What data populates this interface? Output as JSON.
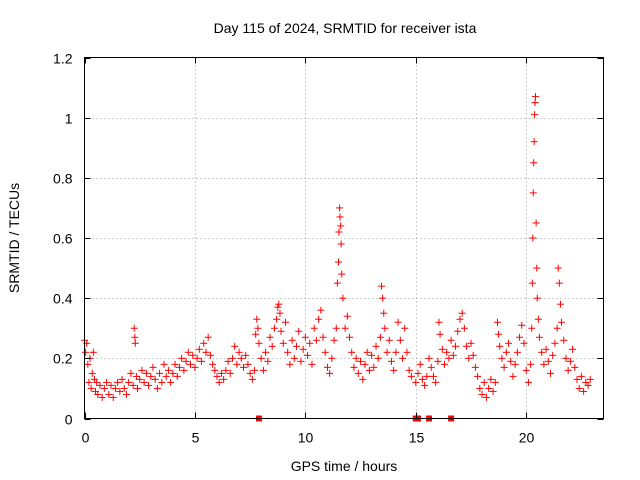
{
  "chart_data": {
    "type": "scatter",
    "title": "Day 115 of 2024, SRMTID for receiver ista",
    "xlabel": "GPS time / hours",
    "ylabel": "SRMTID / TECUs",
    "xlim": [
      0,
      23.5
    ],
    "ylim": [
      0,
      1.2
    ],
    "x_ticks": [
      0,
      5,
      10,
      15,
      20
    ],
    "y_ticks": [
      0,
      0.2,
      0.4,
      0.6,
      0.8,
      1,
      1.2
    ],
    "x_tick_labels": [
      "0",
      "5",
      "10",
      "15",
      "20"
    ],
    "y_tick_labels": [
      "0",
      "0.2",
      "0.4",
      "0.6",
      "0.8",
      "1",
      "1.2"
    ],
    "grid": true,
    "marker": "plus",
    "color": "#ff0000",
    "series": [
      {
        "name": "SRMTID",
        "points": [
          [
            0.0,
            0.26
          ],
          [
            0.05,
            0.22
          ],
          [
            0.1,
            0.25
          ],
          [
            0.15,
            0.18
          ],
          [
            0.2,
            0.12
          ],
          [
            0.25,
            0.2
          ],
          [
            0.3,
            0.1
          ],
          [
            0.35,
            0.15
          ],
          [
            0.4,
            0.22
          ],
          [
            0.45,
            0.13
          ],
          [
            0.5,
            0.09
          ],
          [
            0.55,
            0.12
          ],
          [
            0.6,
            0.08
          ],
          [
            0.7,
            0.11
          ],
          [
            0.8,
            0.07
          ],
          [
            0.9,
            0.1
          ],
          [
            1.0,
            0.12
          ],
          [
            1.1,
            0.08
          ],
          [
            1.2,
            0.11
          ],
          [
            1.3,
            0.07
          ],
          [
            1.4,
            0.1
          ],
          [
            1.5,
            0.12
          ],
          [
            1.6,
            0.09
          ],
          [
            1.7,
            0.13
          ],
          [
            1.8,
            0.1
          ],
          [
            1.9,
            0.08
          ],
          [
            2.0,
            0.12
          ],
          [
            2.1,
            0.15
          ],
          [
            2.2,
            0.11
          ],
          [
            2.25,
            0.3
          ],
          [
            2.28,
            0.27
          ],
          [
            2.3,
            0.25
          ],
          [
            2.35,
            0.14
          ],
          [
            2.4,
            0.1
          ],
          [
            2.5,
            0.13
          ],
          [
            2.6,
            0.16
          ],
          [
            2.7,
            0.12
          ],
          [
            2.8,
            0.15
          ],
          [
            2.9,
            0.11
          ],
          [
            3.0,
            0.14
          ],
          [
            3.1,
            0.17
          ],
          [
            3.2,
            0.13
          ],
          [
            3.3,
            0.1
          ],
          [
            3.4,
            0.15
          ],
          [
            3.5,
            0.12
          ],
          [
            3.6,
            0.18
          ],
          [
            3.7,
            0.14
          ],
          [
            3.8,
            0.16
          ],
          [
            3.9,
            0.12
          ],
          [
            4.0,
            0.15
          ],
          [
            4.1,
            0.18
          ],
          [
            4.2,
            0.14
          ],
          [
            4.3,
            0.17
          ],
          [
            4.4,
            0.2
          ],
          [
            4.5,
            0.16
          ],
          [
            4.6,
            0.19
          ],
          [
            4.7,
            0.22
          ],
          [
            4.8,
            0.18
          ],
          [
            4.9,
            0.21
          ],
          [
            5.0,
            0.17
          ],
          [
            5.1,
            0.2
          ],
          [
            5.2,
            0.23
          ],
          [
            5.3,
            0.19
          ],
          [
            5.4,
            0.25
          ],
          [
            5.5,
            0.22
          ],
          [
            5.6,
            0.27
          ],
          [
            5.7,
            0.21
          ],
          [
            5.8,
            0.18
          ],
          [
            5.9,
            0.16
          ],
          [
            6.0,
            0.14
          ],
          [
            6.1,
            0.12
          ],
          [
            6.2,
            0.15
          ],
          [
            6.3,
            0.13
          ],
          [
            6.4,
            0.16
          ],
          [
            6.5,
            0.19
          ],
          [
            6.6,
            0.15
          ],
          [
            6.7,
            0.2
          ],
          [
            6.8,
            0.24
          ],
          [
            6.9,
            0.18
          ],
          [
            7.0,
            0.22
          ],
          [
            7.1,
            0.2
          ],
          [
            7.2,
            0.17
          ],
          [
            7.3,
            0.21
          ],
          [
            7.4,
            0.18
          ],
          [
            7.5,
            0.15
          ],
          [
            7.6,
            0.13
          ],
          [
            7.7,
            0.16
          ],
          [
            7.75,
            0.28
          ],
          [
            7.8,
            0.33
          ],
          [
            7.85,
            0.3
          ],
          [
            7.9,
            0.25
          ],
          [
            8.0,
            0.2
          ],
          [
            8.1,
            0.16
          ],
          [
            8.2,
            0.22
          ],
          [
            8.3,
            0.19
          ],
          [
            8.4,
            0.27
          ],
          [
            8.5,
            0.24
          ],
          [
            8.6,
            0.3
          ],
          [
            8.7,
            0.33
          ],
          [
            8.75,
            0.37
          ],
          [
            8.8,
            0.38
          ],
          [
            8.85,
            0.35
          ],
          [
            8.9,
            0.29
          ],
          [
            9.0,
            0.25
          ],
          [
            9.1,
            0.32
          ],
          [
            9.2,
            0.22
          ],
          [
            9.3,
            0.18
          ],
          [
            9.4,
            0.26
          ],
          [
            9.5,
            0.2
          ],
          [
            9.6,
            0.24
          ],
          [
            9.7,
            0.29
          ],
          [
            9.8,
            0.19
          ],
          [
            9.9,
            0.23
          ],
          [
            10.0,
            0.27
          ],
          [
            10.1,
            0.21
          ],
          [
            10.2,
            0.25
          ],
          [
            10.3,
            0.18
          ],
          [
            10.4,
            0.3
          ],
          [
            10.5,
            0.26
          ],
          [
            10.6,
            0.33
          ],
          [
            10.7,
            0.36
          ],
          [
            10.8,
            0.27
          ],
          [
            10.9,
            0.22
          ],
          [
            11.0,
            0.17
          ],
          [
            11.1,
            0.15
          ],
          [
            11.2,
            0.2
          ],
          [
            11.3,
            0.26
          ],
          [
            11.4,
            0.3
          ],
          [
            11.45,
            0.45
          ],
          [
            11.5,
            0.52
          ],
          [
            11.52,
            0.62
          ],
          [
            11.55,
            0.7
          ],
          [
            11.57,
            0.67
          ],
          [
            11.6,
            0.64
          ],
          [
            11.62,
            0.58
          ],
          [
            11.65,
            0.48
          ],
          [
            11.7,
            0.4
          ],
          [
            11.8,
            0.3
          ],
          [
            11.9,
            0.34
          ],
          [
            12.0,
            0.27
          ],
          [
            12.1,
            0.22
          ],
          [
            12.2,
            0.17
          ],
          [
            12.3,
            0.2
          ],
          [
            12.4,
            0.15
          ],
          [
            12.5,
            0.19
          ],
          [
            12.6,
            0.13
          ],
          [
            12.7,
            0.18
          ],
          [
            12.8,
            0.22
          ],
          [
            12.9,
            0.16
          ],
          [
            13.0,
            0.21
          ],
          [
            13.1,
            0.17
          ],
          [
            13.2,
            0.24
          ],
          [
            13.3,
            0.2
          ],
          [
            13.4,
            0.27
          ],
          [
            13.45,
            0.44
          ],
          [
            13.5,
            0.4
          ],
          [
            13.55,
            0.35
          ],
          [
            13.6,
            0.3
          ],
          [
            13.7,
            0.22
          ],
          [
            13.8,
            0.26
          ],
          [
            13.9,
            0.19
          ],
          [
            14.0,
            0.16
          ],
          [
            14.1,
            0.22
          ],
          [
            14.2,
            0.32
          ],
          [
            14.3,
            0.26
          ],
          [
            14.4,
            0.2
          ],
          [
            14.5,
            0.3
          ],
          [
            14.6,
            0.22
          ],
          [
            14.7,
            0.16
          ],
          [
            14.8,
            0.14
          ],
          [
            15.0,
            0.12
          ],
          [
            15.1,
            0.15
          ],
          [
            15.2,
            0.18
          ],
          [
            15.3,
            0.13
          ],
          [
            15.4,
            0.11
          ],
          [
            15.5,
            0.14
          ],
          [
            15.6,
            0.2
          ],
          [
            15.7,
            0.17
          ],
          [
            15.8,
            0.14
          ],
          [
            15.9,
            0.12
          ],
          [
            16.0,
            0.19
          ],
          [
            16.05,
            0.32
          ],
          [
            16.1,
            0.28
          ],
          [
            16.2,
            0.23
          ],
          [
            16.3,
            0.18
          ],
          [
            16.4,
            0.22
          ],
          [
            16.5,
            0.2
          ],
          [
            16.6,
            0.26
          ],
          [
            16.7,
            0.21
          ],
          [
            16.8,
            0.24
          ],
          [
            16.9,
            0.29
          ],
          [
            17.0,
            0.33
          ],
          [
            17.1,
            0.35
          ],
          [
            17.2,
            0.3
          ],
          [
            17.3,
            0.24
          ],
          [
            17.4,
            0.2
          ],
          [
            17.5,
            0.25
          ],
          [
            17.6,
            0.21
          ],
          [
            17.7,
            0.17
          ],
          [
            17.8,
            0.14
          ],
          [
            17.9,
            0.1
          ],
          [
            18.0,
            0.08
          ],
          [
            18.1,
            0.12
          ],
          [
            18.2,
            0.07
          ],
          [
            18.3,
            0.1
          ],
          [
            18.4,
            0.13
          ],
          [
            18.5,
            0.09
          ],
          [
            18.6,
            0.12
          ],
          [
            18.7,
            0.32
          ],
          [
            18.75,
            0.28
          ],
          [
            18.8,
            0.24
          ],
          [
            18.9,
            0.2
          ],
          [
            19.0,
            0.17
          ],
          [
            19.1,
            0.22
          ],
          [
            19.2,
            0.25
          ],
          [
            19.3,
            0.19
          ],
          [
            19.4,
            0.14
          ],
          [
            19.5,
            0.18
          ],
          [
            19.6,
            0.22
          ],
          [
            19.7,
            0.27
          ],
          [
            19.8,
            0.31
          ],
          [
            19.9,
            0.25
          ],
          [
            20.0,
            0.16
          ],
          [
            20.1,
            0.12
          ],
          [
            20.2,
            0.18
          ],
          [
            20.25,
            0.3
          ],
          [
            20.28,
            0.45
          ],
          [
            20.3,
            0.6
          ],
          [
            20.32,
            0.75
          ],
          [
            20.34,
            0.85
          ],
          [
            20.36,
            0.92
          ],
          [
            20.38,
            1.01
          ],
          [
            20.4,
            1.05
          ],
          [
            20.42,
            1.07
          ],
          [
            20.45,
            0.65
          ],
          [
            20.48,
            0.5
          ],
          [
            20.5,
            0.4
          ],
          [
            20.55,
            0.33
          ],
          [
            20.6,
            0.27
          ],
          [
            20.7,
            0.22
          ],
          [
            20.8,
            0.18
          ],
          [
            20.9,
            0.23
          ],
          [
            21.0,
            0.19
          ],
          [
            21.1,
            0.15
          ],
          [
            21.2,
            0.21
          ],
          [
            21.3,
            0.25
          ],
          [
            21.4,
            0.3
          ],
          [
            21.45,
            0.5
          ],
          [
            21.5,
            0.45
          ],
          [
            21.55,
            0.38
          ],
          [
            21.6,
            0.32
          ],
          [
            21.7,
            0.26
          ],
          [
            21.8,
            0.2
          ],
          [
            21.9,
            0.16
          ],
          [
            22.0,
            0.19
          ],
          [
            22.1,
            0.23
          ],
          [
            22.2,
            0.17
          ],
          [
            22.3,
            0.13
          ],
          [
            22.4,
            0.1
          ],
          [
            22.5,
            0.14
          ],
          [
            22.6,
            0.09
          ],
          [
            22.7,
            0.12
          ],
          [
            22.8,
            0.11
          ],
          [
            22.9,
            0.13
          ]
        ]
      }
    ],
    "zero_markers": [
      7.9,
      15.0,
      15.1,
      15.6,
      16.6
    ]
  }
}
